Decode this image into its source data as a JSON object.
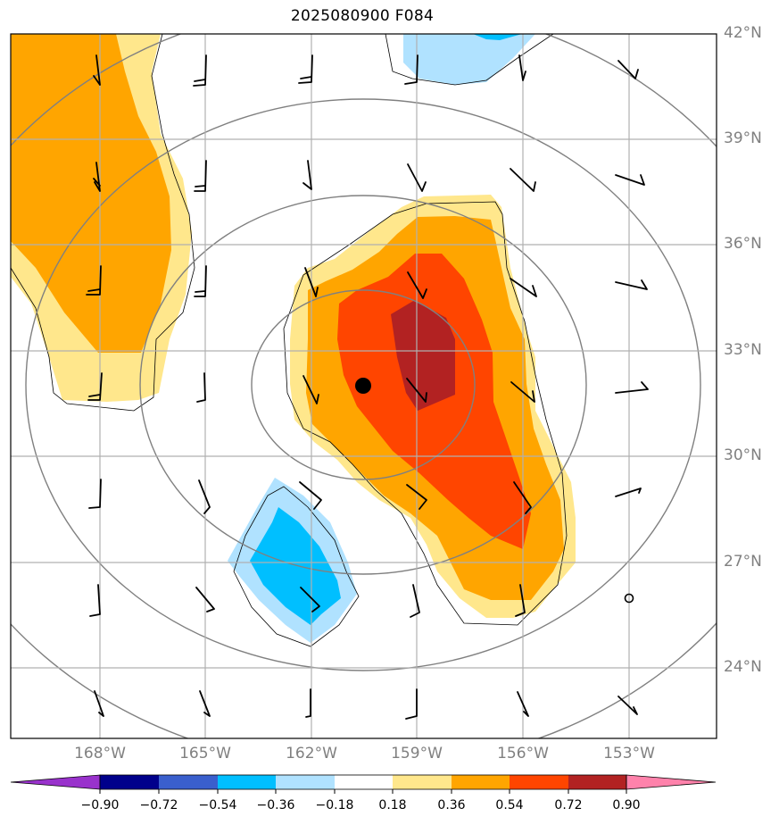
{
  "title": "2025080900 F084",
  "lat_labels": [
    "42°N",
    "39°N",
    "36°N",
    "33°N",
    "30°N",
    "27°N",
    "24°N"
  ],
  "lon_labels": [
    "168°W",
    "165°W",
    "162°W",
    "159°W",
    "156°W",
    "153°W"
  ],
  "colorbar": {
    "tick_labels": [
      "−0.90",
      "−0.72",
      "−0.54",
      "−0.36",
      "−0.18",
      "0.18",
      "0.36",
      "0.54",
      "0.72",
      "0.90"
    ],
    "colors": [
      "#9932cc",
      "#00008b",
      "#3a5fcd",
      "#00bfff",
      "#b0e2ff",
      "#ffffff",
      "#ffe78c",
      "#ffa500",
      "#ff4500",
      "#b22222",
      "#ff82ab"
    ]
  },
  "storm_center_marker": "filled-circle",
  "colors": {
    "grid": "#b0b0b0",
    "range_rings": "#808080",
    "contour": "#000000",
    "label": "#808080"
  }
}
